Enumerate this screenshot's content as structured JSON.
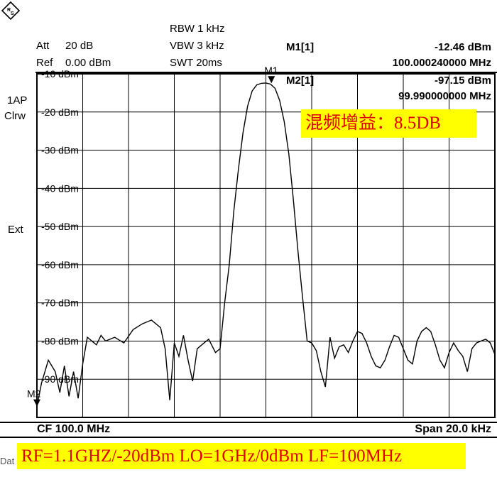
{
  "header": {
    "att_label": "Att",
    "att_value": "20 dB",
    "ref_label": "Ref",
    "ref_value": "0.00 dBm",
    "rbw": "RBW 1 kHz",
    "vbw": "VBW 3 kHz",
    "swt": "SWT 20ms"
  },
  "markers": {
    "m1_label": "M1[1]",
    "m1_level": "-12.46 dBm",
    "m1_freq": "100.000240000 MHz",
    "m2_label": "M2[1]",
    "m2_level": "-97.15 dBm",
    "m2_freq": "99.990000000 MHz",
    "m1_tag": "M1",
    "m2_tag": "M2"
  },
  "side": {
    "trace_mode_1": "1AP",
    "trace_mode_2": "Clrw",
    "ext": "Ext"
  },
  "footer": {
    "cf": "CF 100.0 MHz",
    "span": "Span 20.0 kHz",
    "cutoff": "Dat"
  },
  "annotations": {
    "gain": "混频增益：8.5DB",
    "conditions": "RF=1.1GHZ/-20dBm LO=1GHz/0dBm LF=100MHz"
  },
  "colors": {
    "highlight": "#ffff00",
    "annotation_text": "#e00000",
    "trace": "#000000"
  },
  "chart_data": {
    "type": "line",
    "title": "",
    "xlabel": "",
    "ylabel": "",
    "x_unit": "MHz",
    "xlim": [
      99.99,
      100.01
    ],
    "ylim": [
      -100,
      -10
    ],
    "y_tick_labels": [
      "-10 dBm",
      "-20 dBm",
      "-30 dBm",
      "-40 dBm",
      "-50 dBm",
      "-60 dBm",
      "-70 dBm",
      "-80 dBm",
      "-90 dBm"
    ],
    "y_tick_values": [
      -10,
      -20,
      -30,
      -40,
      -50,
      -60,
      -70,
      -80,
      -90
    ],
    "grid": true,
    "series": [
      {
        "x": [
          99.99,
          99.9902,
          99.9905,
          99.9908,
          99.991,
          99.9912,
          99.9914,
          99.9916,
          99.9918,
          99.992,
          99.9922,
          99.9924,
          99.9926,
          99.9928,
          99.993,
          99.9934,
          99.9938,
          99.9942,
          99.9946,
          99.995,
          99.9954,
          99.9956,
          99.9958,
          99.996,
          99.9962,
          99.9964,
          99.9966,
          99.9968,
          99.997,
          99.9972,
          99.9975,
          99.9978,
          99.998,
          99.9982,
          99.9984,
          99.9986,
          99.9988,
          99.999,
          99.9992,
          99.9994,
          99.9996,
          99.9998,
          100.0,
          100.0002,
          100.0004,
          100.0006,
          100.0008,
          100.001,
          100.0012,
          100.0014,
          100.0016,
          100.0018,
          100.002,
          100.0022,
          100.0024,
          100.0026,
          100.0028,
          100.003,
          100.0032,
          100.0034,
          100.0036,
          100.0038,
          100.004,
          100.0042,
          100.0044,
          100.0046,
          100.0048,
          100.005,
          100.0052,
          100.0054,
          100.0056,
          100.0058,
          100.006,
          100.0062,
          100.0064,
          100.0066,
          100.0068,
          100.007,
          100.0072,
          100.0074,
          100.0076,
          100.0078,
          100.008,
          100.0082,
          100.0084,
          100.0086,
          100.0088,
          100.009,
          100.0092,
          100.0094,
          100.0096,
          100.0098,
          100.01
        ],
        "y": [
          -97.2,
          -91.0,
          -85.0,
          -88.0,
          -93.5,
          -86.5,
          -94.5,
          -88.0,
          -95.0,
          -86.0,
          -79.0,
          -80.0,
          -81.0,
          -78.5,
          -80.0,
          -79.0,
          -80.5,
          -77.0,
          -75.5,
          -74.5,
          -76.5,
          -82.0,
          -95.5,
          -80.5,
          -84.0,
          -78.5,
          -85.0,
          -90.5,
          -82.0,
          -81.0,
          -79.5,
          -83.0,
          -82.0,
          -70.0,
          -60.0,
          -46.0,
          -35.0,
          -25.5,
          -18.5,
          -14.5,
          -12.9,
          -12.5,
          -12.4,
          -12.7,
          -13.8,
          -17.0,
          -22.5,
          -31.0,
          -43.0,
          -56.5,
          -68.5,
          -80.0,
          -80.5,
          -82.5,
          -88.0,
          -92.0,
          -79.0,
          -84.5,
          -81.5,
          -81.0,
          -83.0,
          -80.0,
          -77.5,
          -78.0,
          -80.5,
          -84.0,
          -86.5,
          -87.0,
          -85.0,
          -81.5,
          -78.5,
          -79.0,
          -82.0,
          -85.0,
          -86.0,
          -80.0,
          -77.5,
          -76.5,
          -77.5,
          -81.0,
          -85.0,
          -87.0,
          -83.0,
          -80.5,
          -82.5,
          -84.0,
          -88.0,
          -82.0,
          -80.5,
          -80.0,
          -79.5,
          -80.5,
          -83.5
        ]
      }
    ],
    "markers": [
      {
        "name": "M1",
        "x": 100.00024,
        "y": -12.46
      },
      {
        "name": "M2",
        "x": 99.99,
        "y": -97.15
      }
    ]
  }
}
